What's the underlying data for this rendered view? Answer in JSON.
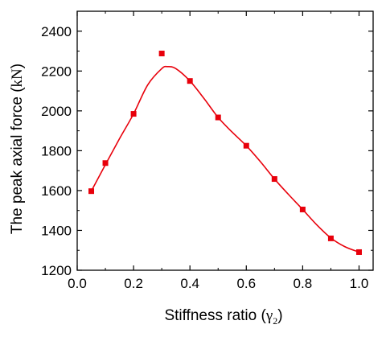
{
  "chart_data": {
    "type": "scatter",
    "title": "",
    "xlabel_main": "Stiffness ratio (",
    "xlabel_symbol": "γ",
    "xlabel_subscript": "2",
    "xlabel_close": ")",
    "ylabel_main": "The peak axial force (",
    "ylabel_unit": "kN",
    "ylabel_close": ")",
    "xlim": [
      0.0,
      1.05
    ],
    "ylim": [
      1200,
      2500
    ],
    "x_ticks": [
      0.0,
      0.2,
      0.4,
      0.6,
      0.8,
      1.0
    ],
    "x_tick_labels": [
      "0.0",
      "0.2",
      "0.4",
      "0.6",
      "0.8",
      "1.0"
    ],
    "y_ticks": [
      1200,
      1400,
      1600,
      1800,
      2000,
      2200,
      2400
    ],
    "y_tick_labels": [
      "1200",
      "1400",
      "1600",
      "1800",
      "2000",
      "2200",
      "2400"
    ],
    "grid": false,
    "series": [
      {
        "kind": "markers",
        "marker": "square",
        "color": "#e8000b",
        "x": [
          0.05,
          0.1,
          0.2,
          0.3,
          0.4,
          0.5,
          0.6,
          0.7,
          0.8,
          0.9,
          1.0
        ],
        "y": [
          1597,
          1738,
          1985,
          2288,
          2150,
          1967,
          1825,
          1658,
          1505,
          1360,
          1291
        ]
      },
      {
        "kind": "fitted-curve",
        "color": "#e8000b",
        "x": [
          0.05,
          0.1,
          0.15,
          0.2,
          0.25,
          0.3,
          0.32,
          0.35,
          0.4,
          0.45,
          0.5,
          0.55,
          0.6,
          0.65,
          0.7,
          0.75,
          0.8,
          0.85,
          0.9,
          0.95,
          1.0
        ],
        "y": [
          1597,
          1730,
          1860,
          1985,
          2130,
          2212,
          2222,
          2212,
          2150,
          2062,
          1967,
          1893,
          1825,
          1745,
          1658,
          1580,
          1505,
          1428,
          1362,
          1318,
          1291
        ]
      }
    ]
  }
}
